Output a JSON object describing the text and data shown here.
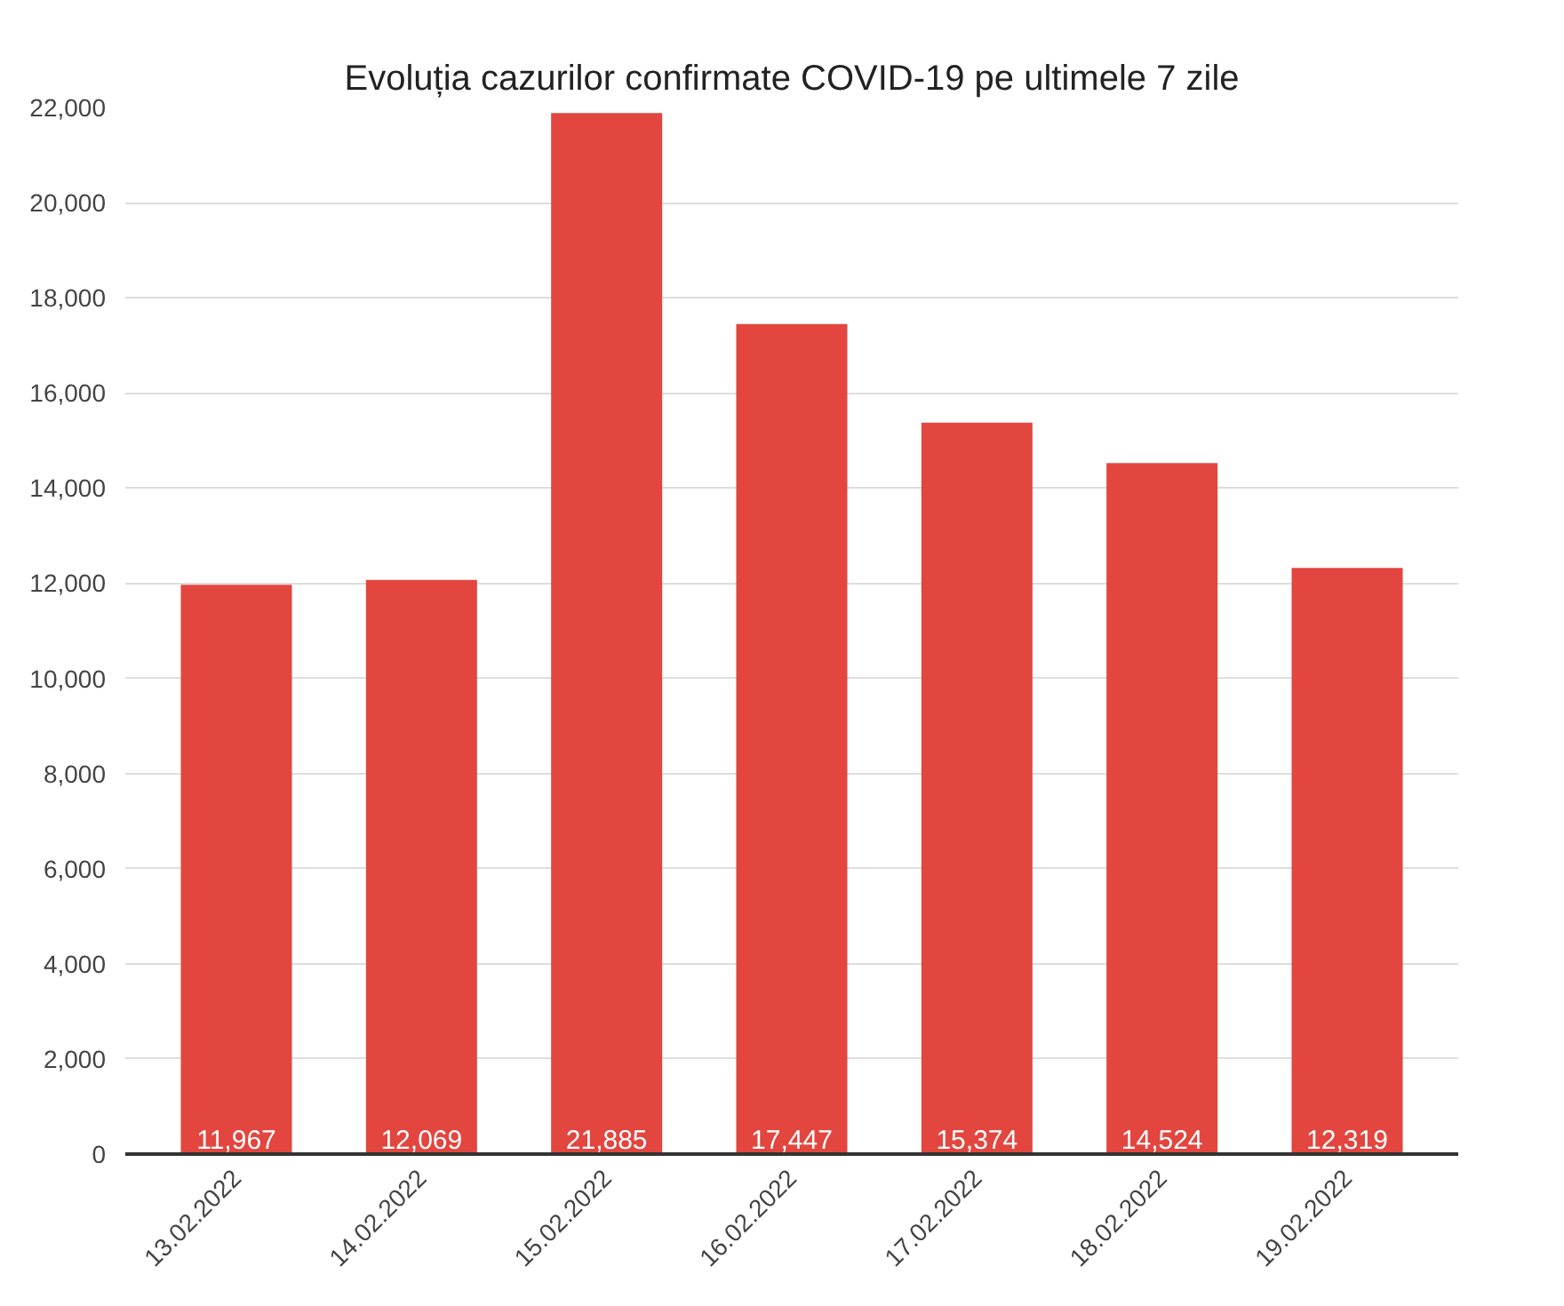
{
  "chart_data": {
    "type": "bar",
    "title": "Evoluția cazurilor confirmate COVID-19 pe ultimele 7 zile",
    "categories": [
      "13.02.2022",
      "14.02.2022",
      "15.02.2022",
      "16.02.2022",
      "17.02.2022",
      "18.02.2022",
      "19.02.2022"
    ],
    "values": [
      11967,
      12069,
      21885,
      17447,
      15374,
      14524,
      12319
    ],
    "value_labels": [
      "11,967",
      "12,069",
      "21,885",
      "17,447",
      "15,374",
      "14,524",
      "12,319"
    ],
    "color": "#e2463f",
    "ylim": [
      0,
      22000
    ],
    "yticks": [
      0,
      {
        "value": 2000,
        "label": "2,000"
      },
      {
        "value": 4000,
        "label": "4,000"
      },
      {
        "value": 6000,
        "label": "6,000"
      },
      {
        "value": 8000,
        "label": "8,000"
      },
      {
        "value": 10000,
        "label": "10,000"
      },
      {
        "value": 12000,
        "label": "12,000"
      },
      {
        "value": 14000,
        "label": "14,000"
      },
      {
        "value": 16000,
        "label": "16,000"
      },
      {
        "value": 18000,
        "label": "18,000"
      },
      {
        "value": 20000,
        "label": "20,000"
      },
      {
        "value": 22000,
        "label": "22,000"
      }
    ],
    "grid": "y"
  }
}
